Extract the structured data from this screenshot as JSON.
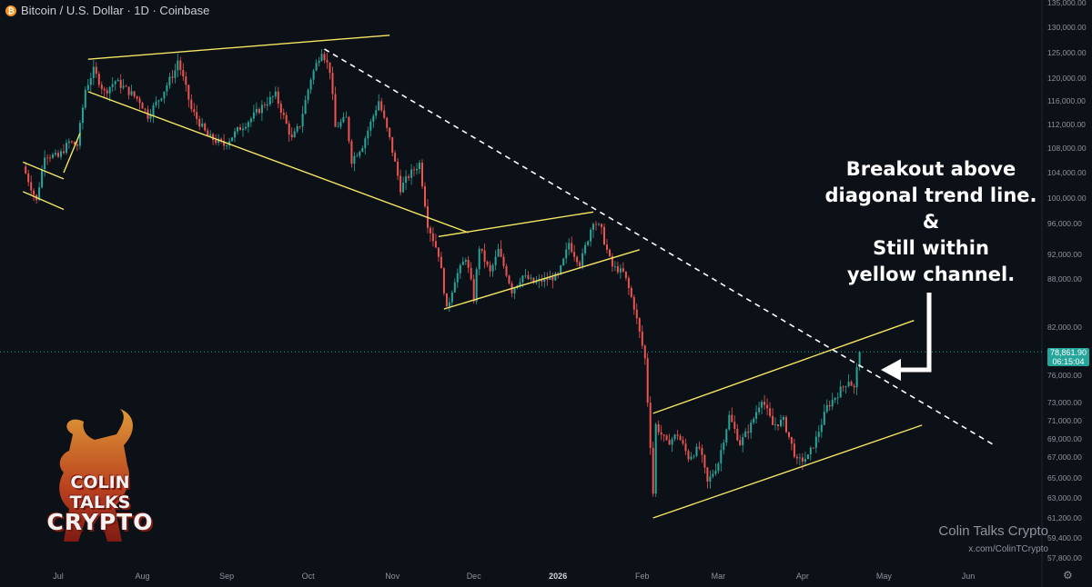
{
  "header": {
    "icon": "bitcoin-icon",
    "title": "Bitcoin / U.S. Dollar · 1D · Coinbase"
  },
  "annotation": {
    "lines": [
      "Breakout above",
      "diagonal trend line.",
      "&",
      "Still within",
      "yellow channel."
    ]
  },
  "price_tag": {
    "price": "78,861.90",
    "countdown": "06:15:04"
  },
  "watermark": {
    "title": "Colin Talks Crypto",
    "handle": "x.com/ColinTCrypto"
  },
  "logo": {
    "line1": "COLIN TALKS",
    "line2": "CRYPTO"
  },
  "colors": {
    "up": "#26a69a",
    "down": "#ef5350",
    "trend": "#f5e663",
    "dashed": "#ffffff",
    "background": "#0c1017"
  },
  "chart_data": {
    "type": "candlestick",
    "symbol": "Bitcoin / U.S. Dollar",
    "interval": "1D",
    "exchange": "Coinbase",
    "y_ticks": [
      "135,000.00",
      "130,000.00",
      "125,000.00",
      "120,000.00",
      "116,000.00",
      "112,000.00",
      "108,000.00",
      "104,000.00",
      "100,000.00",
      "96,000.00",
      "92,000.00",
      "88,000.00",
      "82,000.00",
      "79,000.00",
      "76,000.00",
      "73,000.00",
      "71,000.00",
      "69,000.00",
      "67,000.00",
      "65,000.00",
      "63,000.00",
      "61,200.00",
      "59,400.00",
      "57,800.00"
    ],
    "x_ticks": [
      "Jul",
      "Aug",
      "Sep",
      "Oct",
      "Nov",
      "Dec",
      "2026",
      "Feb",
      "Mar",
      "Apr",
      "May",
      "Jun"
    ],
    "bold_x_tick": "2026",
    "last_price": 78861.9,
    "ohlc_path": [
      [
        "2025-06-18",
        105000
      ],
      [
        "2025-06-23",
        99500
      ],
      [
        "2025-06-26",
        107000
      ],
      [
        "2025-07-01",
        106500
      ],
      [
        "2025-07-05",
        109000
      ],
      [
        "2025-07-08",
        108500
      ],
      [
        "2025-07-11",
        118000
      ],
      [
        "2025-07-14",
        121500
      ],
      [
        "2025-07-18",
        117500
      ],
      [
        "2025-07-22",
        119500
      ],
      [
        "2025-07-26",
        118000
      ],
      [
        "2025-07-31",
        116000
      ],
      [
        "2025-08-03",
        113500
      ],
      [
        "2025-08-08",
        117000
      ],
      [
        "2025-08-13",
        121500
      ],
      [
        "2025-08-14",
        123500
      ],
      [
        "2025-08-19",
        114500
      ],
      [
        "2025-08-25",
        110000
      ],
      [
        "2025-08-31",
        108500
      ],
      [
        "2025-09-05",
        111000
      ],
      [
        "2025-09-10",
        113000
      ],
      [
        "2025-09-15",
        115500
      ],
      [
        "2025-09-19",
        117000
      ],
      [
        "2025-09-25",
        109500
      ],
      [
        "2025-09-28",
        112000
      ],
      [
        "2025-10-02",
        120000
      ],
      [
        "2025-10-06",
        125500
      ],
      [
        "2025-10-09",
        121500
      ],
      [
        "2025-10-11",
        111500
      ],
      [
        "2025-10-15",
        113000
      ],
      [
        "2025-10-17",
        106000
      ],
      [
        "2025-10-21",
        108500
      ],
      [
        "2025-10-27",
        116000
      ],
      [
        "2025-10-31",
        109500
      ],
      [
        "2025-11-04",
        101500
      ],
      [
        "2025-11-07",
        103500
      ],
      [
        "2025-11-11",
        105500
      ],
      [
        "2025-11-14",
        96000
      ],
      [
        "2025-11-18",
        92000
      ],
      [
        "2025-11-21",
        84000
      ],
      [
        "2025-11-24",
        88000
      ],
      [
        "2025-11-28",
        91500
      ],
      [
        "2025-12-01",
        85500
      ],
      [
        "2025-12-03",
        93000
      ],
      [
        "2025-12-07",
        89000
      ],
      [
        "2025-12-10",
        92500
      ],
      [
        "2025-12-15",
        86500
      ],
      [
        "2025-12-19",
        88500
      ],
      [
        "2025-12-23",
        87500
      ],
      [
        "2025-12-28",
        88000
      ],
      [
        "2026-01-01",
        88500
      ],
      [
        "2026-01-05",
        93500
      ],
      [
        "2026-01-09",
        90500
      ],
      [
        "2026-01-14",
        96500
      ],
      [
        "2026-01-17",
        95000
      ],
      [
        "2026-01-21",
        90000
      ],
      [
        "2026-01-25",
        89000
      ],
      [
        "2026-01-29",
        84500
      ],
      [
        "2026-02-02",
        78000
      ],
      [
        "2026-02-05",
        63500
      ],
      [
        "2026-02-06",
        70500
      ],
      [
        "2026-02-10",
        68500
      ],
      [
        "2026-02-14",
        69500
      ],
      [
        "2026-02-18",
        67000
      ],
      [
        "2026-02-22",
        68000
      ],
      [
        "2026-02-25",
        64500
      ],
      [
        "2026-03-01",
        66500
      ],
      [
        "2026-03-05",
        71500
      ],
      [
        "2026-03-09",
        68500
      ],
      [
        "2026-03-13",
        70500
      ],
      [
        "2026-03-17",
        73500
      ],
      [
        "2026-03-21",
        70500
      ],
      [
        "2026-03-25",
        71000
      ],
      [
        "2026-03-30",
        66500
      ],
      [
        "2026-04-03",
        67000
      ],
      [
        "2026-04-06",
        69000
      ],
      [
        "2026-04-10",
        72500
      ],
      [
        "2026-04-14",
        74000
      ],
      [
        "2026-04-18",
        75500
      ],
      [
        "2026-04-20",
        74500
      ],
      [
        "2026-04-22",
        78862
      ]
    ],
    "trend_lines": [
      {
        "from": [
          "2025-06-18",
          105700
        ],
        "to": [
          "2025-07-03",
          103000
        ]
      },
      {
        "from": [
          "2025-06-18",
          101000
        ],
        "to": [
          "2025-07-03",
          98200
        ]
      },
      {
        "from": [
          "2025-07-03",
          104000
        ],
        "to": [
          "2025-07-09",
          110500
        ]
      },
      {
        "from": [
          "2025-07-12",
          123700
        ],
        "to": [
          "2025-10-31",
          128400
        ]
      },
      {
        "from": [
          "2025-07-12",
          117600
        ],
        "to": [
          "2025-11-29",
          94800
        ]
      },
      {
        "from": [
          "2025-11-18",
          94300
        ],
        "to": [
          "2026-01-14",
          97800
        ]
      },
      {
        "from": [
          "2025-11-20",
          84200
        ],
        "to": [
          "2026-01-31",
          92600
        ]
      },
      {
        "from": [
          "2026-02-05",
          71800
        ],
        "to": [
          "2026-05-12",
          82800
        ]
      },
      {
        "from": [
          "2026-02-05",
          61200
        ],
        "to": [
          "2026-05-15",
          70500
        ]
      }
    ],
    "dashed_line": {
      "from": [
        "2025-10-07",
        125700
      ],
      "to": [
        "2026-06-10",
        68400
      ]
    }
  }
}
